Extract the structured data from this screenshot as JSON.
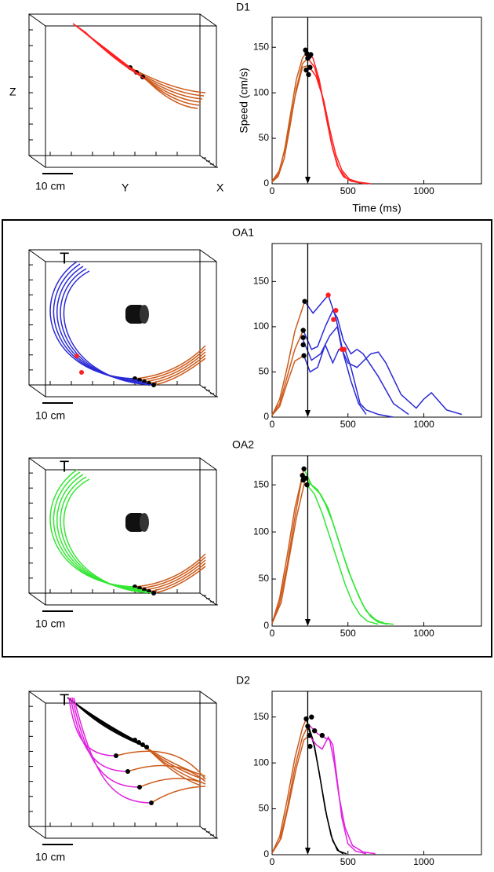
{
  "chart_data": [
    {
      "type": "line",
      "title": "D1",
      "xlabel": "Time (ms)",
      "ylabel": "Speed (cm/s)",
      "xlim": [
        0,
        1380
      ],
      "ylim": [
        0,
        183
      ],
      "xticks": [
        0,
        500,
        1000
      ],
      "yticks": [
        0,
        50,
        100,
        150
      ],
      "vline": 235,
      "series": [
        {
          "color": "#cc5a1a",
          "x": [
            0,
            40,
            80,
            120,
            160,
            200,
            230
          ],
          "values": [
            2,
            10,
            35,
            75,
            115,
            138,
            145
          ]
        },
        {
          "color": "#cc5a1a",
          "x": [
            0,
            40,
            80,
            120,
            160,
            200,
            235
          ],
          "values": [
            2,
            8,
            28,
            65,
            105,
            132,
            138
          ]
        },
        {
          "color": "#cc5a1a",
          "x": [
            0,
            50,
            100,
            150,
            200,
            240
          ],
          "values": [
            3,
            15,
            50,
            95,
            128,
            130
          ]
        },
        {
          "color": "#ff2020",
          "x": [
            230,
            270,
            310,
            350,
            390,
            430,
            470,
            520,
            580
          ],
          "values": [
            145,
            138,
            115,
            80,
            45,
            20,
            8,
            3,
            1
          ]
        },
        {
          "color": "#ff2020",
          "x": [
            235,
            280,
            320,
            360,
            400,
            440,
            490,
            550,
            620
          ],
          "values": [
            138,
            128,
            105,
            70,
            38,
            17,
            6,
            2,
            0
          ]
        },
        {
          "color": "#ff2020",
          "x": [
            240,
            290,
            340,
            380,
            420,
            460,
            510,
            570,
            650
          ],
          "values": [
            130,
            118,
            92,
            60,
            32,
            15,
            5,
            2,
            0
          ]
        },
        {
          "color": "#000000",
          "style": "dots",
          "x": [
            220,
            230,
            235,
            245,
            250,
            240,
            225,
            255
          ],
          "values": [
            147,
            143,
            138,
            140,
            128,
            120,
            125,
            142
          ]
        }
      ]
    },
    {
      "type": "line",
      "title": "OA1",
      "xlim": [
        0,
        1380
      ],
      "ylim": [
        0,
        192
      ],
      "xticks": [
        0,
        500,
        1000
      ],
      "yticks": [
        0,
        50,
        100,
        150
      ],
      "vline": 235,
      "series": [
        {
          "color": "#cc5a1a",
          "x": [
            0,
            50,
            100,
            150,
            215
          ],
          "values": [
            2,
            20,
            55,
            95,
            128
          ]
        },
        {
          "color": "#cc5a1a",
          "x": [
            0,
            50,
            100,
            150,
            205
          ],
          "values": [
            2,
            15,
            45,
            75,
            96
          ]
        },
        {
          "color": "#cc5a1a",
          "x": [
            0,
            50,
            100,
            150,
            210
          ],
          "values": [
            2,
            12,
            38,
            62,
            68
          ]
        },
        {
          "color": "#2a2ad6",
          "x": [
            215,
            270,
            320,
            370,
            420,
            470,
            520,
            570,
            620
          ],
          "values": [
            128,
            115,
            125,
            135,
            110,
            70,
            40,
            15,
            3
          ]
        },
        {
          "color": "#2a2ad6",
          "x": [
            205,
            260,
            300,
            350,
            400,
            430,
            470,
            520,
            560,
            600,
            700,
            800,
            900
          ],
          "values": [
            96,
            75,
            78,
            100,
            118,
            110,
            85,
            70,
            75,
            70,
            45,
            15,
            3
          ]
        },
        {
          "color": "#2a2ad6",
          "x": [
            205,
            260,
            320,
            380,
            430,
            460,
            500,
            560,
            650,
            700,
            750,
            850,
            950,
            1000,
            1050,
            1150,
            1250
          ],
          "values": [
            85,
            63,
            70,
            90,
            100,
            75,
            60,
            55,
            70,
            72,
            60,
            25,
            10,
            20,
            27,
            8,
            3
          ]
        },
        {
          "color": "#2a2ad6",
          "x": [
            210,
            250,
            300,
            350,
            400,
            440,
            480,
            520,
            580,
            620,
            700,
            800
          ],
          "values": [
            68,
            50,
            55,
            80,
            60,
            75,
            75,
            55,
            15,
            8,
            3,
            0
          ]
        },
        {
          "color": "#000000",
          "style": "dots",
          "x": [
            215,
            205,
            205,
            205,
            210
          ],
          "values": [
            128,
            96,
            88,
            80,
            68
          ]
        },
        {
          "color": "#ff2020",
          "style": "dots",
          "x": [
            370,
            420,
            405,
            460,
            475
          ],
          "values": [
            135,
            118,
            108,
            75,
            75
          ]
        }
      ]
    },
    {
      "type": "line",
      "title": "OA2",
      "xlim": [
        0,
        1380
      ],
      "ylim": [
        0,
        181
      ],
      "xticks": [
        0,
        500,
        1000
      ],
      "yticks": [
        0,
        50,
        100,
        150
      ],
      "vline": 235,
      "series": [
        {
          "color": "#cc5a1a",
          "x": [
            0,
            50,
            100,
            150,
            210
          ],
          "values": [
            3,
            30,
            75,
            125,
            167
          ]
        },
        {
          "color": "#cc5a1a",
          "x": [
            0,
            50,
            100,
            150,
            200
          ],
          "values": [
            3,
            25,
            65,
            115,
            160
          ]
        },
        {
          "color": "#cc5a1a",
          "x": [
            0,
            60,
            110,
            160,
            220
          ],
          "values": [
            3,
            25,
            70,
            115,
            157
          ]
        },
        {
          "color": "#33e633",
          "x": [
            210,
            260,
            300,
            350,
            400,
            450,
            500,
            550,
            600,
            650,
            700,
            760
          ],
          "values": [
            167,
            150,
            145,
            130,
            110,
            85,
            60,
            40,
            22,
            10,
            4,
            2
          ]
        },
        {
          "color": "#33e633",
          "x": [
            220,
            270,
            320,
            370,
            420,
            470,
            520,
            570,
            620,
            680,
            740,
            800
          ],
          "values": [
            157,
            148,
            140,
            125,
            100,
            75,
            52,
            32,
            16,
            7,
            3,
            2
          ]
        },
        {
          "color": "#33e633",
          "x": [
            230,
            280,
            330,
            380,
            430,
            480,
            530,
            580,
            630,
            700
          ],
          "values": [
            150,
            140,
            120,
            95,
            70,
            45,
            25,
            12,
            5,
            2
          ]
        },
        {
          "color": "#000000",
          "style": "dots",
          "x": [
            210,
            200,
            220,
            230,
            205
          ],
          "values": [
            167,
            160,
            157,
            150,
            155
          ]
        }
      ]
    },
    {
      "type": "line",
      "title": "D2",
      "xlim": [
        0,
        1380
      ],
      "ylim": [
        0,
        178
      ],
      "xticks": [
        0,
        500,
        1000
      ],
      "yticks": [
        0,
        50,
        100,
        150
      ],
      "vline": 235,
      "series": [
        {
          "color": "#cc5a1a",
          "x": [
            0,
            50,
            100,
            150,
            200,
            225
          ],
          "values": [
            2,
            20,
            60,
            105,
            138,
            148
          ]
        },
        {
          "color": "#cc5a1a",
          "x": [
            0,
            50,
            100,
            150,
            200,
            235
          ],
          "values": [
            2,
            15,
            50,
            95,
            128,
            140
          ]
        },
        {
          "color": "#cc5a1a",
          "x": [
            0,
            60,
            110,
            160,
            210,
            245
          ],
          "values": [
            2,
            18,
            55,
            95,
            125,
            130
          ]
        },
        {
          "color": "#000000",
          "x": [
            225,
            270,
            310,
            350,
            390,
            430,
            470
          ],
          "values": [
            148,
            125,
            90,
            50,
            20,
            5,
            1
          ]
        },
        {
          "color": "#000000",
          "x": [
            235,
            280,
            320,
            360,
            400,
            440,
            490
          ],
          "values": [
            140,
            118,
            80,
            42,
            15,
            4,
            1
          ]
        },
        {
          "color": "#e020e0",
          "x": [
            245,
            290,
            330,
            370,
            400,
            430,
            460,
            500,
            550,
            620
          ],
          "values": [
            130,
            120,
            115,
            128,
            120,
            80,
            40,
            12,
            4,
            1
          ]
        },
        {
          "color": "#e020e0",
          "x": [
            250,
            300,
            340,
            380,
            410,
            440,
            480,
            530,
            600,
            680
          ],
          "values": [
            140,
            132,
            128,
            125,
            100,
            65,
            30,
            10,
            3,
            1
          ]
        },
        {
          "color": "#000000",
          "style": "dots",
          "x": [
            225,
            235,
            245,
            260,
            280,
            330,
            250
          ],
          "values": [
            148,
            140,
            130,
            150,
            135,
            130,
            118
          ]
        }
      ]
    }
  ],
  "trajectory_panels": [
    {
      "z_label": "Z",
      "y_label": "Y",
      "x_label": "X",
      "scale": "10 cm"
    },
    {
      "target": "T",
      "scale": "10 cm"
    },
    {
      "target": "T",
      "scale": "10 cm"
    },
    {
      "target": "T",
      "scale": "10 cm"
    }
  ]
}
